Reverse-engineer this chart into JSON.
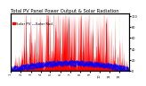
{
  "title": "Total PV Panel Power Output & Solar Radiation",
  "legend1": "Solar PV",
  "legend2": "Solar Rad.",
  "bg_color": "#ffffff",
  "plot_bg": "#ffffff",
  "grid_color": "#c0c0c0",
  "red_color": "#ff0000",
  "blue_color": "#0000ff",
  "n_points": 525,
  "title_fontsize": 3.8,
  "legend_fontsize": 2.8,
  "tick_fontsize": 2.5,
  "ytick_labels": [
    "0",
    "20",
    "40",
    "60",
    "80",
    "100"
  ],
  "ytick_vals": [
    0.0,
    0.2,
    0.4,
    0.6,
    0.8,
    1.0
  ],
  "month_ticks": [
    0,
    45,
    90,
    135,
    175,
    220,
    263,
    307,
    350,
    394,
    438,
    481
  ],
  "month_labels": [
    "1",
    "2",
    "3",
    "4",
    "5",
    "6",
    "7",
    "8",
    "9",
    "10",
    "11",
    "12"
  ]
}
